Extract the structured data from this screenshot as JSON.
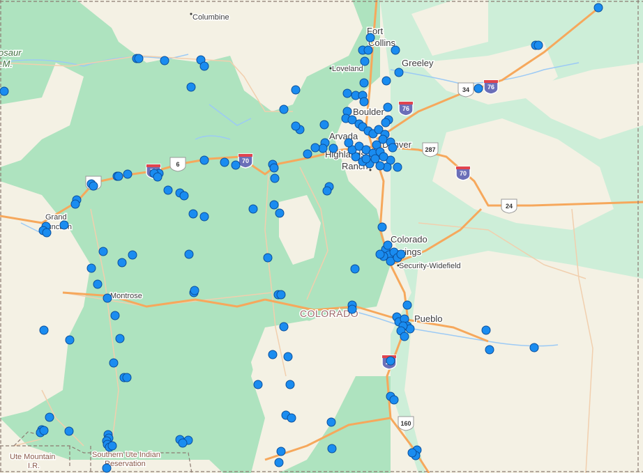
{
  "map": {
    "colors": {
      "land": "#f4f1e4",
      "forest": "#aee3bf",
      "grassland": "#cdeed8",
      "highway": "#f6a85c",
      "minor_road": "#f1cfae",
      "water": "#9ccaf5",
      "marker_fill": "#1a8cf0",
      "marker_stroke": "#0b4f9a",
      "border": "#8c7b72"
    },
    "places": [
      {
        "id": "columbine",
        "label": "Columbine"
      },
      {
        "id": "fort-collins-1",
        "label": "Fort"
      },
      {
        "id": "fort-collins-2",
        "label": "Collins"
      },
      {
        "id": "loveland",
        "label": "Loveland"
      },
      {
        "id": "greeley",
        "label": "Greeley"
      },
      {
        "id": "boulder",
        "label": "Boulder"
      },
      {
        "id": "arvada",
        "label": "Arvada"
      },
      {
        "id": "denver",
        "label": "Denver"
      },
      {
        "id": "highlands",
        "label": "Highlands"
      },
      {
        "id": "ranch",
        "label": "Ranch"
      },
      {
        "id": "grand-1",
        "label": "Grand"
      },
      {
        "id": "grand-2",
        "label": "Junction"
      },
      {
        "id": "cos-1",
        "label": "Colorado"
      },
      {
        "id": "cos-2",
        "label": "Springs"
      },
      {
        "id": "security",
        "label": "Security-Widefield"
      },
      {
        "id": "montrose",
        "label": "Montrose"
      },
      {
        "id": "pueblo",
        "label": "Pueblo"
      }
    ],
    "state_label": "COLORADO",
    "protected_areas": [
      {
        "id": "dinosaur-1",
        "label": "osaur"
      },
      {
        "id": "dinosaur-2",
        "label": ".M."
      },
      {
        "id": "ute-1",
        "label": "Ute Mountain"
      },
      {
        "id": "ute-2",
        "label": "I.R."
      },
      {
        "id": "sute-1",
        "label": "Southern Ute Indian"
      },
      {
        "id": "sute-2",
        "label": "Reservation"
      }
    ],
    "shields": [
      {
        "type": "us",
        "label": "34"
      },
      {
        "type": "interstate",
        "label": "76"
      },
      {
        "type": "interstate",
        "label": "76"
      },
      {
        "type": "us",
        "label": "287"
      },
      {
        "type": "interstate",
        "label": "70"
      },
      {
        "type": "interstate",
        "label": "70"
      },
      {
        "type": "us",
        "label": "6"
      },
      {
        "type": "interstate",
        "label": "70"
      },
      {
        "type": "us",
        "label": "6"
      },
      {
        "type": "us",
        "label": "24"
      },
      {
        "type": "us",
        "label": "160"
      },
      {
        "type": "interstate",
        "label": "25"
      }
    ]
  }
}
